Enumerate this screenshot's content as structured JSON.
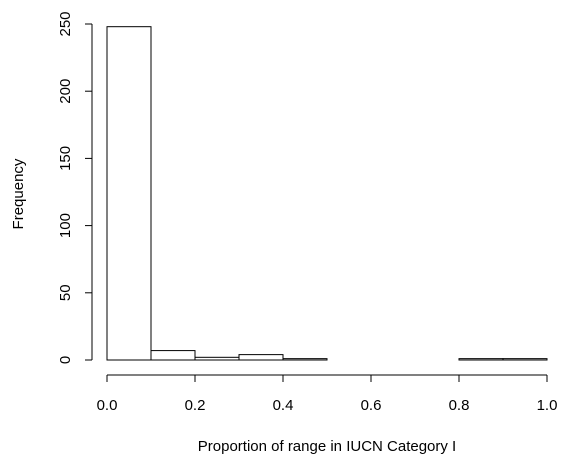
{
  "chart_data": {
    "type": "bar",
    "bins": [
      {
        "start": 0.0,
        "end": 0.1,
        "count": 248
      },
      {
        "start": 0.1,
        "end": 0.2,
        "count": 7
      },
      {
        "start": 0.2,
        "end": 0.3,
        "count": 2
      },
      {
        "start": 0.3,
        "end": 0.4,
        "count": 4
      },
      {
        "start": 0.4,
        "end": 0.5,
        "count": 1
      },
      {
        "start": 0.5,
        "end": 0.6,
        "count": 0
      },
      {
        "start": 0.6,
        "end": 0.7,
        "count": 0
      },
      {
        "start": 0.7,
        "end": 0.8,
        "count": 0
      },
      {
        "start": 0.8,
        "end": 0.9,
        "count": 1
      },
      {
        "start": 0.9,
        "end": 1.0,
        "count": 1
      }
    ],
    "xlabel": "Proportion of range in IUCN Category I",
    "ylabel": "Frequency",
    "xlim": [
      0,
      1
    ],
    "ylim": [
      0,
      250
    ],
    "x_ticks": [
      "0.0",
      "0.2",
      "0.4",
      "0.6",
      "0.8",
      "1.0"
    ],
    "y_ticks": [
      "0",
      "50",
      "100",
      "150",
      "200",
      "250"
    ],
    "grid": false,
    "legend": false
  }
}
